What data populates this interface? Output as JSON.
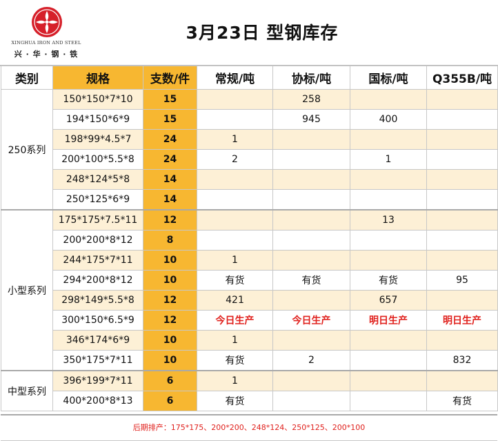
{
  "header": {
    "logo_name_en": "XINGHUA IRON AND STEEL",
    "logo_name_cn": "兴 · 华 · 钢 · 铁",
    "logo_color": "#d6202a",
    "title": "3月23日 型钢库存"
  },
  "columns": {
    "category": "类别",
    "spec": "规格",
    "count": "支数/件",
    "regular": "常规/吨",
    "assoc": "协标/吨",
    "national": "国标/吨",
    "q355b": "Q355B/吨"
  },
  "groups": [
    {
      "name": "250系列",
      "rows": [
        {
          "spec": "150*150*7*10",
          "count": "15",
          "regular": "",
          "assoc": "258",
          "national": "",
          "q355b": ""
        },
        {
          "spec": "194*150*6*9",
          "count": "15",
          "regular": "",
          "assoc": "945",
          "national": "400",
          "q355b": ""
        },
        {
          "spec": "198*99*4.5*7",
          "count": "24",
          "regular": "1",
          "assoc": "",
          "national": "",
          "q355b": ""
        },
        {
          "spec": "200*100*5.5*8",
          "count": "24",
          "regular": "2",
          "assoc": "",
          "national": "1",
          "q355b": ""
        },
        {
          "spec": "248*124*5*8",
          "count": "14",
          "regular": "",
          "assoc": "",
          "national": "",
          "q355b": ""
        },
        {
          "spec": "250*125*6*9",
          "count": "14",
          "regular": "",
          "assoc": "",
          "national": "",
          "q355b": ""
        }
      ]
    },
    {
      "name": "小型系列",
      "rows": [
        {
          "spec": "175*175*7.5*11",
          "count": "12",
          "regular": "",
          "assoc": "",
          "national": "13",
          "q355b": ""
        },
        {
          "spec": "200*200*8*12",
          "count": "8",
          "regular": "",
          "assoc": "",
          "national": "",
          "q355b": ""
        },
        {
          "spec": "244*175*7*11",
          "count": "10",
          "regular": "1",
          "assoc": "",
          "national": "",
          "q355b": ""
        },
        {
          "spec": "294*200*8*12",
          "count": "10",
          "regular": "有货",
          "assoc": "有货",
          "national": "有货",
          "q355b": "95"
        },
        {
          "spec": "298*149*5.5*8",
          "count": "12",
          "regular": "421",
          "assoc": "",
          "national": "657",
          "q355b": ""
        },
        {
          "spec": "300*150*6.5*9",
          "count": "12",
          "regular": "今日生产",
          "assoc": "今日生产",
          "national": "明日生产",
          "q355b": "明日生产",
          "highlight": true
        },
        {
          "spec": "346*174*6*9",
          "count": "10",
          "regular": "1",
          "assoc": "",
          "national": "",
          "q355b": ""
        },
        {
          "spec": "350*175*7*11",
          "count": "10",
          "regular": "有货",
          "assoc": "2",
          "national": "",
          "q355b": "832"
        }
      ]
    },
    {
      "name": "中型系列",
      "rows": [
        {
          "spec": "396*199*7*11",
          "count": "6",
          "regular": "1",
          "assoc": "",
          "national": "",
          "q355b": ""
        },
        {
          "spec": "400*200*8*13",
          "count": "6",
          "regular": "有货",
          "assoc": "",
          "national": "",
          "q355b": "有货"
        }
      ]
    }
  ],
  "footer": {
    "note": "后期排产：175*175、200*200、248*124、250*125、200*100"
  },
  "colors": {
    "spec_header": "#f7b731",
    "count_column": "#f7b731",
    "alt_row": "#fdf0d6",
    "highlight_text": "#e0201c"
  }
}
